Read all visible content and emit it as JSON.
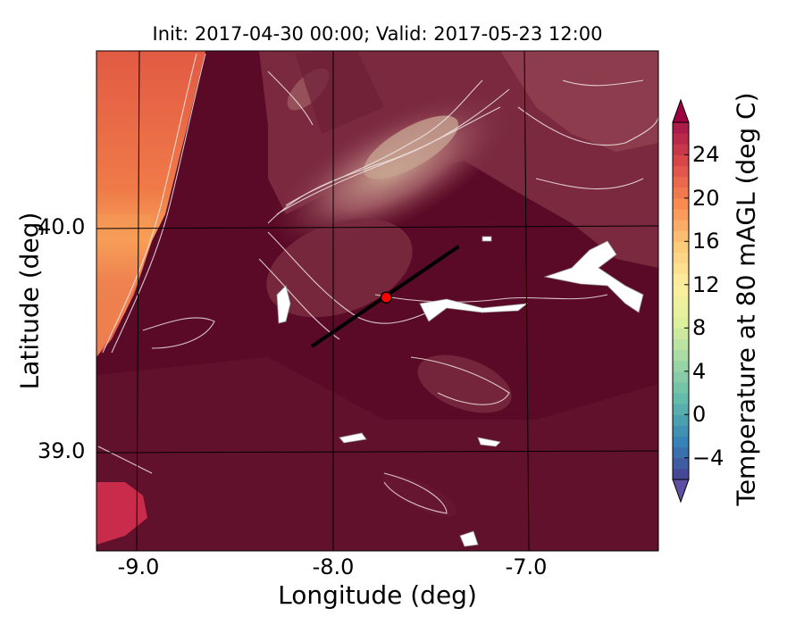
{
  "map": {
    "title": "Init: 2017-04-30 00:00; Valid: 2017-05-23 12:00",
    "xlabel": "Longitude (deg)",
    "ylabel": "Latitude (deg)",
    "x_ticks": [
      "-9.0",
      "-8.0",
      "-7.0"
    ],
    "y_ticks": [
      "40.0",
      "39.0"
    ],
    "colorbar": {
      "label": "Temperature at 80 mAGL (deg C)",
      "ticks": [
        "−4",
        "0",
        "4",
        "8",
        "12",
        "16",
        "20",
        "24"
      ],
      "tick_values": [
        -4,
        0,
        4,
        8,
        12,
        16,
        20,
        24
      ],
      "vmin": -6,
      "vmax": 27,
      "colormap": "Spectral_r",
      "extend": "both"
    },
    "lon_range": [
      -9.22,
      -6.35
    ],
    "lat_range": [
      38.55,
      40.8
    ],
    "cross_section": {
      "start": {
        "lon": -8.12,
        "lat": 39.47
      },
      "end": {
        "lon": -7.37,
        "lat": 39.92
      },
      "point": {
        "lon": -7.74,
        "lat": 39.69
      },
      "line_color": "#000000",
      "point_color": "#ff0000"
    },
    "colors": {
      "land_dark": "#5c0a26",
      "highland": "#8b3a4a",
      "ocean_warm": "#e8553d",
      "ocean_warmer": "#f9a04f"
    }
  }
}
